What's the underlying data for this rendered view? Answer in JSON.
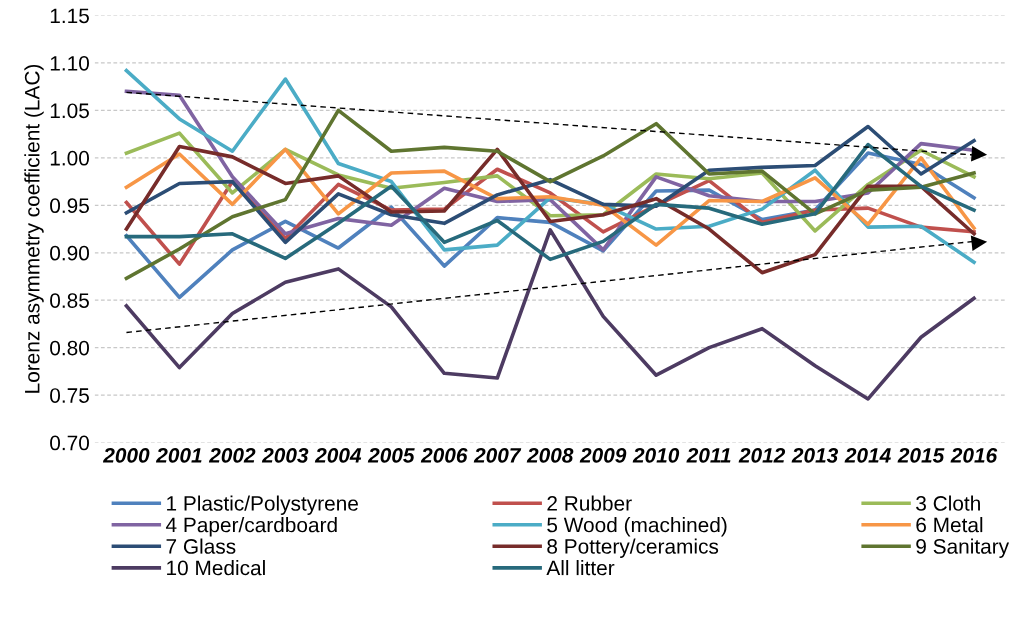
{
  "chart_data": {
    "type": "line",
    "ylabel": "Lorenz asymmetry coefficient (LAC)",
    "categories": [
      "2000",
      "2001",
      "2002",
      "2003",
      "2004",
      "2005",
      "2006",
      "2007",
      "2008",
      "2009",
      "2010",
      "2011",
      "2012",
      "2013",
      "2014",
      "2015",
      "2016"
    ],
    "ylim": [
      0.7,
      1.15
    ],
    "yticks": [
      {
        "value": 0.7,
        "label": "0.70"
      },
      {
        "value": 0.75,
        "label": "0.75"
      },
      {
        "value": 0.8,
        "label": "0.80"
      },
      {
        "value": 0.85,
        "label": "0.85"
      },
      {
        "value": 0.9,
        "label": "0.90"
      },
      {
        "value": 0.95,
        "label": "0.95"
      },
      {
        "value": 1.0,
        "label": "1.00"
      },
      {
        "value": 1.05,
        "label": "1.05"
      },
      {
        "value": 1.1,
        "label": "1.10"
      },
      {
        "value": 1.15,
        "label": "1.15"
      }
    ],
    "grid": "y",
    "legend": "bottom",
    "marker": "none",
    "line_style": "solid",
    "series": [
      {
        "name": "1 Plastic/Polystyrene",
        "color": "#4f81bd",
        "values": [
          0.918,
          0.853,
          0.903,
          0.933,
          0.905,
          0.948,
          0.886,
          0.937,
          0.932,
          0.902,
          0.965,
          0.966,
          0.935,
          0.945,
          1.005,
          0.993,
          0.958
        ]
      },
      {
        "name": "2 Rubber",
        "color": "#c0504d",
        "values": [
          0.953,
          0.888,
          0.975,
          0.915,
          0.972,
          0.945,
          0.946,
          0.988,
          0.963,
          0.922,
          0.95,
          0.976,
          0.932,
          0.945,
          0.947,
          0.927,
          0.922
        ]
      },
      {
        "name": "3 Cloth",
        "color": "#9bbb59",
        "values": [
          1.005,
          1.026,
          0.963,
          1.009,
          0.982,
          0.968,
          0.974,
          0.981,
          0.939,
          0.94,
          0.983,
          0.978,
          0.984,
          0.923,
          0.972,
          1.008,
          0.98
        ]
      },
      {
        "name": "4 Paper/cardboard",
        "color": "#8064a2",
        "values": [
          1.07,
          1.066,
          0.98,
          0.92,
          0.936,
          0.929,
          0.968,
          0.954,
          0.956,
          0.903,
          0.98,
          0.96,
          0.954,
          0.954,
          0.963,
          1.015,
          1.008
        ]
      },
      {
        "name": "5 Wood (machined)",
        "color": "#4bacc6",
        "values": [
          1.092,
          1.041,
          1.007,
          1.083,
          0.994,
          0.975,
          0.903,
          0.908,
          0.958,
          0.951,
          0.925,
          0.928,
          0.946,
          0.987,
          0.927,
          0.928,
          0.89
        ]
      },
      {
        "name": "6 Metal",
        "color": "#f79646",
        "values": [
          0.969,
          1.004,
          0.951,
          1.009,
          0.941,
          0.984,
          0.986,
          0.957,
          0.959,
          0.95,
          0.908,
          0.955,
          0.954,
          0.979,
          0.93,
          1.0,
          0.926
        ]
      },
      {
        "name": "7 Glass",
        "color": "#2c4d75",
        "values": [
          0.942,
          0.973,
          0.975,
          0.911,
          0.962,
          0.94,
          0.931,
          0.961,
          0.977,
          0.951,
          0.949,
          0.987,
          0.99,
          0.992,
          1.033,
          0.983,
          1.018
        ]
      },
      {
        "name": "8 Pottery/ceramics",
        "color": "#772c2a",
        "values": [
          0.925,
          1.012,
          1.001,
          0.973,
          0.981,
          0.943,
          0.944,
          1.009,
          0.933,
          0.94,
          0.957,
          0.925,
          0.879,
          0.898,
          0.97,
          0.97,
          0.92
        ]
      },
      {
        "name": "9 Sanitary",
        "color": "#5f7530",
        "values": [
          0.873,
          0.904,
          0.938,
          0.956,
          1.05,
          1.007,
          1.011,
          1.007,
          0.975,
          1.002,
          1.036,
          0.983,
          0.986,
          0.941,
          0.966,
          0.969,
          0.984
        ]
      },
      {
        "name": "10 Medical",
        "color": "#4d3b62",
        "values": [
          0.844,
          0.779,
          0.836,
          0.869,
          0.883,
          0.843,
          0.773,
          0.768,
          0.924,
          0.833,
          0.771,
          0.8,
          0.82,
          0.781,
          0.746,
          0.811,
          0.852
        ]
      },
      {
        "name": "All litter",
        "color": "#276a7c",
        "values": [
          0.917,
          0.917,
          0.92,
          0.894,
          0.931,
          0.97,
          0.911,
          0.934,
          0.893,
          0.912,
          0.951,
          0.947,
          0.93,
          0.941,
          1.014,
          0.97,
          0.945
        ]
      },
      {
        "color": "#000000",
        "values": [
          1.069,
          null,
          null,
          null,
          null,
          null,
          null,
          null,
          null,
          null,
          null,
          null,
          null,
          null,
          null,
          null,
          1.003
        ],
        "line_style": "dashed",
        "marker": "triangle"
      },
      {
        "color": "#000000",
        "values": [
          0.816,
          null,
          null,
          null,
          null,
          null,
          null,
          null,
          null,
          null,
          null,
          null,
          null,
          null,
          null,
          null,
          0.912
        ],
        "line_style": "dashed",
        "marker": "triangle"
      }
    ]
  }
}
